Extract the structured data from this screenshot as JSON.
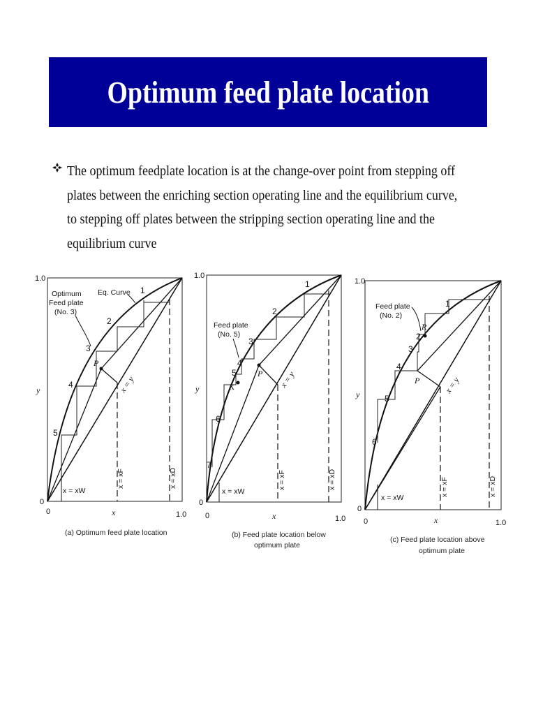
{
  "slide": {
    "title": "Optimum feed plate location",
    "bullet": "The optimum feedplate location is at the change-over point from stepping off plates between the enriching section operating line and the equilibrium curve, to stepping off plates between the stripping section operating line and the equilibrium curve"
  },
  "diagrams": [
    {
      "caption_lines": [
        "(a) Optimum feed plate location"
      ],
      "axis": {
        "y_top": "1.0",
        "origin_y": "0",
        "origin_x": "0",
        "x_right": "1.0",
        "x_label": "x",
        "y_label": "y"
      },
      "annotations": [
        {
          "text": "Optimum",
          "x": 15,
          "y": 32
        },
        {
          "text": "Feed plate",
          "x": 12,
          "y": 45
        },
        {
          "text": "(No. 3)",
          "x": 20,
          "y": 58
        },
        {
          "text": "Eq. Curve",
          "x": 88,
          "y": 30
        }
      ],
      "plate_numbers": [
        "1",
        "2",
        "3",
        "4",
        "5"
      ],
      "point_label": "P",
      "diag_label": "x = y",
      "xw_label": "x = xW",
      "xf_label": "x = xF",
      "xd_label": "x = xD"
    },
    {
      "caption_lines": [
        "(b) Feed plate location below",
        "optimum plate"
      ],
      "axis": {
        "y_top": "1.0",
        "origin_y": "0",
        "origin_x": "0",
        "x_right": "1.0",
        "x_label": "x",
        "y_label": "y"
      },
      "annotations": [
        {
          "text": "Feed plate",
          "x": 8,
          "y": 75
        },
        {
          "text": "(No. 5)",
          "x": 14,
          "y": 88
        }
      ],
      "plate_numbers": [
        "1",
        "2",
        "3",
        "4",
        "5",
        "6",
        "7"
      ],
      "point_label": "P",
      "point_label_2": "K",
      "diag_label": "x = y",
      "xw_label": "x = xW",
      "xf_label": "x = xF",
      "xd_label": "x = xD"
    },
    {
      "caption_lines": [
        "(c) Feed plate location above",
        "optimum plate"
      ],
      "axis": {
        "y_top": "1.0",
        "origin_y": "0",
        "origin_x": "0",
        "x_right": "1.0",
        "x_label": "x",
        "y_label": "y"
      },
      "annotations": [
        {
          "text": "Feed plate",
          "x": 18,
          "y": 42
        },
        {
          "text": "(No. 2)",
          "x": 24,
          "y": 55
        }
      ],
      "plate_numbers": [
        "1",
        "2",
        "3",
        "4",
        "5",
        "6"
      ],
      "point_label": "P",
      "point_label_2": "R",
      "diag_label": "x = y",
      "xw_label": "x = xW",
      "xf_label": "x = xF",
      "xd_label": "x = xD"
    }
  ]
}
